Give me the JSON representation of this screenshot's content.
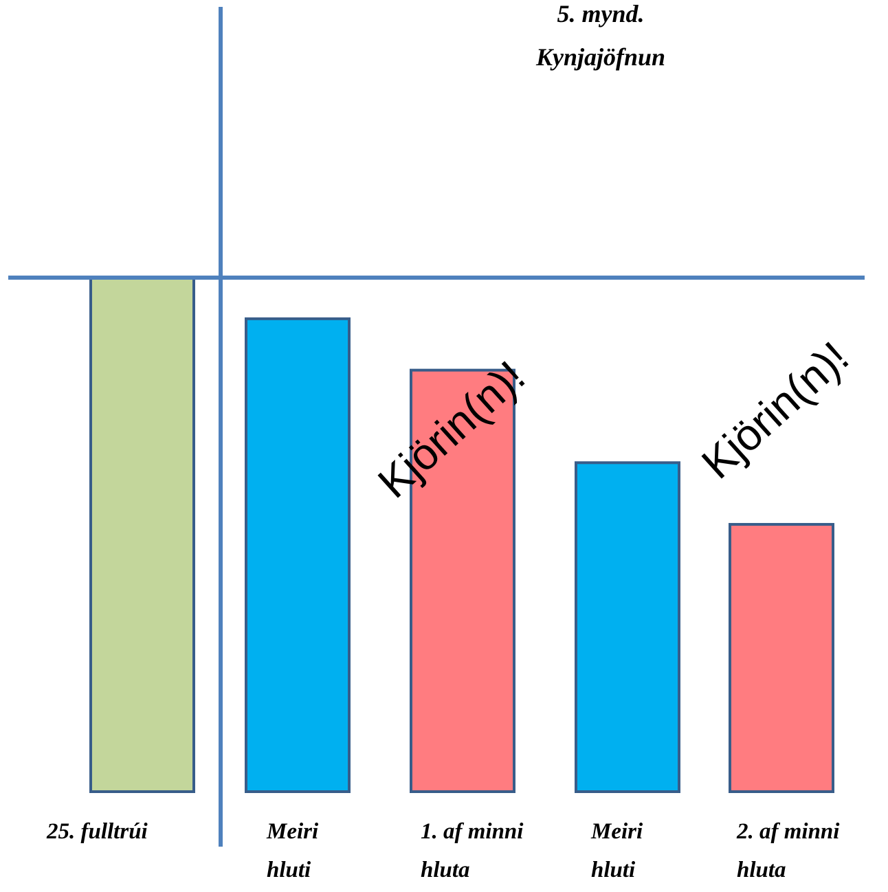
{
  "title": {
    "line1": "5. mynd.",
    "line2": "Kynjajöfnun"
  },
  "colors": {
    "axis": "#4f81bd",
    "bar_outline": "#385d8a",
    "green": "#c3d69b",
    "blue": "#00b0f0",
    "red": "#ff7c80"
  },
  "bars": [
    {
      "label_lines": [
        "25. fulltrúi"
      ],
      "color": "green",
      "relative_height": 1.0
    },
    {
      "label_lines": [
        "Meiri",
        "hluti"
      ],
      "color": "blue",
      "relative_height": 0.92
    },
    {
      "label_lines": [
        "1. af minni",
        "hluta"
      ],
      "color": "red",
      "relative_height": 0.82
    },
    {
      "label_lines": [
        "Meiri",
        "hluti"
      ],
      "color": "blue",
      "relative_height": 0.64
    },
    {
      "label_lines": [
        "2. af minni",
        "hluta"
      ],
      "color": "red",
      "relative_height": 0.52
    }
  ],
  "annotations": [
    {
      "text": "Kjörin(n)!",
      "bar_index": 2
    },
    {
      "text": "Kjörin(n)!",
      "bar_index": 4
    }
  ]
}
